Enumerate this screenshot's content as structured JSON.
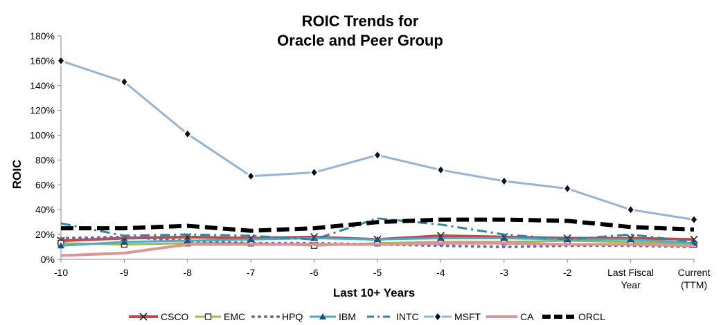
{
  "chart_data": {
    "type": "line",
    "title": [
      "ROIC Trends for",
      "Oracle and Peer Group"
    ],
    "xlabel": "Last 10+ Years",
    "ylabel": "ROIC",
    "categories": [
      "-10",
      "-9",
      "-8",
      "-7",
      "-6",
      "-5",
      "-4",
      "-3",
      "-2",
      "Last Fiscal Year",
      "Current (TTM)"
    ],
    "category_lines": [
      [
        "-10"
      ],
      [
        "-9"
      ],
      [
        "-8"
      ],
      [
        "-7"
      ],
      [
        "-6"
      ],
      [
        "-5"
      ],
      [
        "-4"
      ],
      [
        "-3"
      ],
      [
        "-2"
      ],
      [
        "Last Fiscal",
        "Year"
      ],
      [
        "Current",
        "(TTM)"
      ]
    ],
    "ylim": [
      0,
      180
    ],
    "yticks": [
      0,
      20,
      40,
      60,
      80,
      100,
      120,
      140,
      160,
      180
    ],
    "ytick_labels": [
      "0%",
      "20%",
      "40%",
      "60%",
      "80%",
      "100%",
      "120%",
      "140%",
      "160%",
      "180%"
    ],
    "legend_position": "bottom",
    "series": [
      {
        "name": "CSCO",
        "color": "#be4b48",
        "dash": "",
        "width": 4,
        "marker": "x",
        "values": [
          15,
          17,
          18,
          17,
          18,
          16,
          19,
          18,
          17,
          17,
          16
        ]
      },
      {
        "name": "EMC",
        "color": "#98b954",
        "dash": "",
        "width": 3,
        "marker": "square",
        "values": [
          13,
          12,
          13,
          13,
          11,
          13,
          14,
          14,
          15,
          14,
          12
        ]
      },
      {
        "name": "HPQ",
        "color": "#7e62a1",
        "dash": "1 8",
        "width": 4,
        "marker": "none",
        "values": [
          17,
          18,
          15,
          13,
          13,
          12,
          11,
          10,
          11,
          11,
          10
        ]
      },
      {
        "name": "IBM",
        "color": "#4aacc5",
        "dash": "",
        "width": 3,
        "marker": "triangle",
        "values": [
          11,
          14,
          15,
          16,
          17,
          16,
          17,
          17,
          16,
          16,
          13
        ]
      },
      {
        "name": "INTC",
        "color": "#31859c",
        "dash": "14 6 3 6",
        "width": 3,
        "marker": "none",
        "values": [
          29,
          19,
          20,
          19,
          16,
          33,
          28,
          20,
          16,
          20,
          14
        ]
      },
      {
        "name": "MSFT",
        "color": "#95b3d7",
        "dash": "",
        "width": 3,
        "marker": "diamond",
        "values": [
          160,
          143,
          101,
          67,
          70,
          84,
          72,
          63,
          57,
          40,
          32
        ]
      },
      {
        "name": "CA",
        "color": "#d99694",
        "dash": "",
        "width": 4,
        "marker": "none",
        "values": [
          3,
          5,
          12,
          12,
          12,
          12,
          13,
          13,
          12,
          12,
          11
        ]
      },
      {
        "name": "ORCL",
        "color": "#000000",
        "dash": "18 8",
        "width": 6,
        "marker": "none",
        "values": [
          25,
          25,
          27,
          23,
          25,
          30,
          32,
          32,
          31,
          26,
          24
        ]
      }
    ]
  }
}
